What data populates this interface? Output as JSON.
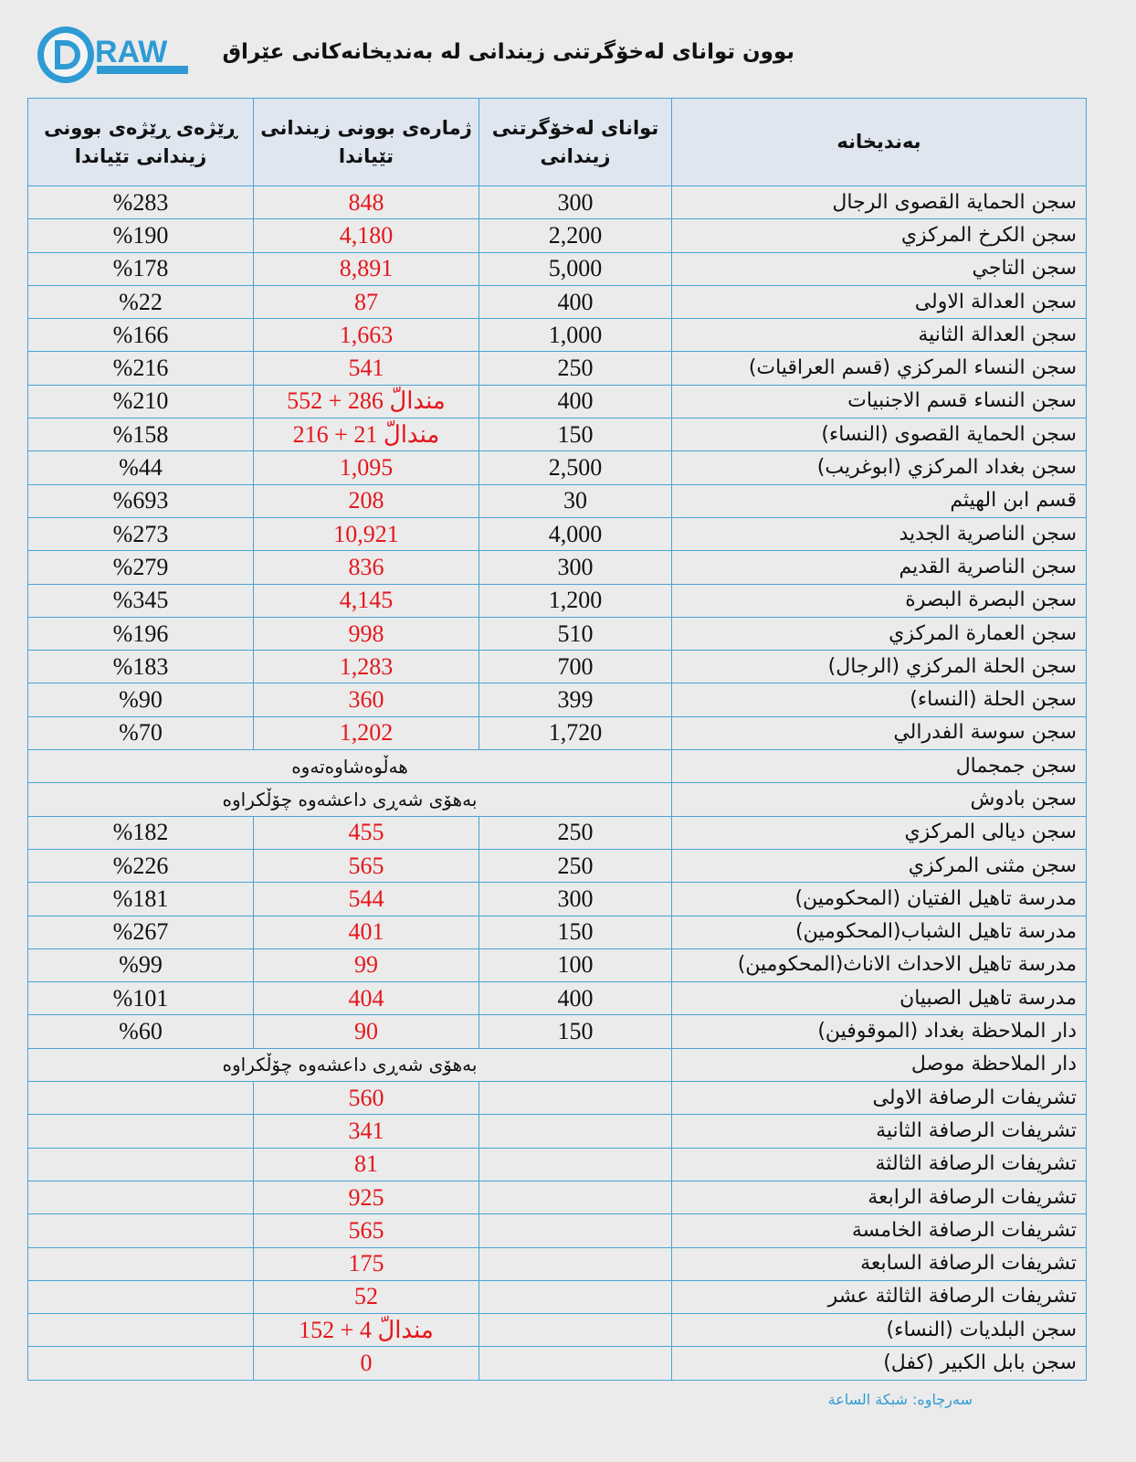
{
  "logo": {
    "text": "DRAW",
    "color": "#2e9bd4"
  },
  "title": "بوون تواناى لەخۆگرتنى زيندانى لە بەنديخانەكانى عێراق",
  "headers": {
    "name": "بەنديخانە",
    "capacity": "تواناى لەخۆگرتنى زيندانى",
    "count": "ژمارەى بوونى زيندانى تێياندا",
    "pct": "ڕێژەى ڕێژەى بوونى زيندانى تێياندا"
  },
  "rows": [
    {
      "name": "سجن الحماية القصوى الرجال",
      "capacity": "300",
      "count": "848",
      "pct": "%283"
    },
    {
      "name": "سجن الكرخ المركزي",
      "capacity": "2,200",
      "count": "4,180",
      "pct": "%190"
    },
    {
      "name": "سجن التاجي",
      "capacity": "5,000",
      "count": "8,891",
      "pct": "%178"
    },
    {
      "name": "سجن العدالة الاولى",
      "capacity": "400",
      "count": "87",
      "pct": "%22"
    },
    {
      "name": "سجن العدالة الثانية",
      "capacity": "1,000",
      "count": "1,663",
      "pct": "%166"
    },
    {
      "name": "سجن النساء المركزي (قسم العراقيات)",
      "capacity": "250",
      "count": "541",
      "pct": "%216"
    },
    {
      "name": "سجن النساء قسم الاجنبيات",
      "capacity": "400",
      "count": "مندالّ 286 + 552",
      "pct": "%210"
    },
    {
      "name": "سجن الحماية القصوى (النساء)",
      "capacity": "150",
      "count": "مندالّ 21 + 216",
      "pct": "%158"
    },
    {
      "name": "سجن بغداد المركزي (ابوغريب)",
      "capacity": "2,500",
      "count": "1,095",
      "pct": "%44"
    },
    {
      "name": "قسم ابن الهيثم",
      "capacity": "30",
      "count": "208",
      "pct": "%693"
    },
    {
      "name": "سجن الناصرية الجديد",
      "capacity": "4,000",
      "count": "10,921",
      "pct": "%273"
    },
    {
      "name": "سجن الناصرية القديم",
      "capacity": "300",
      "count": "836",
      "pct": "%279"
    },
    {
      "name": "سجن البصرة البصرة",
      "capacity": "1,200",
      "count": "4,145",
      "pct": "%345"
    },
    {
      "name": "سجن العمارة المركزي",
      "capacity": "510",
      "count": "998",
      "pct": "%196"
    },
    {
      "name": "سجن الحلة المركزي (الرجال)",
      "capacity": "700",
      "count": "1,283",
      "pct": "%183"
    },
    {
      "name": "سجن الحلة (النساء)",
      "capacity": "399",
      "count": "360",
      "pct": "%90"
    },
    {
      "name": "سجن سوسة الفدرالي",
      "capacity": "1,720",
      "count": "1,202",
      "pct": "%70"
    },
    {
      "name": "سجن جمجمال",
      "merged": "هەڵوەشاوەتەوە"
    },
    {
      "name": "سجن بادوش",
      "merged": "بەهۆى شەڕى داعشەوە چۆڵكراوە"
    },
    {
      "name": "سجن ديالى المركزي",
      "capacity": "250",
      "count": "455",
      "pct": "%182"
    },
    {
      "name": "سجن مثنى المركزي",
      "capacity": "250",
      "count": "565",
      "pct": "%226"
    },
    {
      "name": "مدرسة تاهيل الفتيان (المحكومين)",
      "capacity": "300",
      "count": "544",
      "pct": "%181"
    },
    {
      "name": "مدرسة تاهيل الشباب(المحكومين)",
      "capacity": "150",
      "count": "401",
      "pct": "%267"
    },
    {
      "name": "مدرسة تاهيل الاحداث الاناث(المحكومين)",
      "capacity": "100",
      "count": "99",
      "pct": "%99"
    },
    {
      "name": "مدرسة تاهيل الصبيان",
      "capacity": "400",
      "count": "404",
      "pct": "%101"
    },
    {
      "name": "دار الملاحظة بغداد (الموقوفين)",
      "capacity": "150",
      "count": "90",
      "pct": "%60"
    },
    {
      "name": "دار الملاحظة موصل",
      "merged": "بەهۆى شەڕى داعشەوە چۆڵكراوە"
    },
    {
      "name": "تشريفات الرصافة الاولى",
      "capacity": "",
      "count": "560",
      "pct": ""
    },
    {
      "name": "تشريفات الرصافة الثانية",
      "capacity": "",
      "count": "341",
      "pct": ""
    },
    {
      "name": "تشريفات الرصافة الثالثة",
      "capacity": "",
      "count": "81",
      "pct": ""
    },
    {
      "name": "تشريفات الرصافة الرابعة",
      "capacity": "",
      "count": "925",
      "pct": ""
    },
    {
      "name": "تشريفات الرصافة الخامسة",
      "capacity": "",
      "count": "565",
      "pct": ""
    },
    {
      "name": "تشريفات الرصافة السابعة",
      "capacity": "",
      "count": "175",
      "pct": ""
    },
    {
      "name": "تشريفات الرصافة الثالثة عشر",
      "capacity": "",
      "count": "52",
      "pct": ""
    },
    {
      "name": "سجن البلديات (النساء)",
      "capacity": "",
      "count": "مندالّ 4 + 152",
      "pct": ""
    },
    {
      "name": "سجن بابل الكبير (كفل)",
      "capacity": "",
      "count": "0",
      "pct": ""
    }
  ],
  "source": "سەرچاوە: شبكة الساعة",
  "colors": {
    "border": "#4aa3d6",
    "count_text": "#e5171c",
    "header_bg": "#dfe6f0",
    "source_text": "#2e9bd4"
  }
}
